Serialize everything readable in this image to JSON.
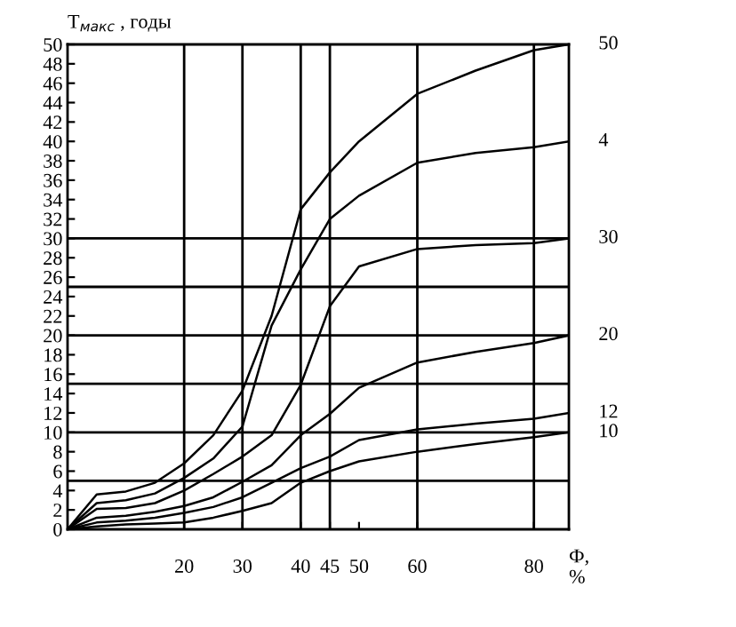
{
  "chart_data": {
    "type": "line",
    "ylabel": "T$_{макс}$ , годы",
    "xlabel": "Ф,\n%",
    "x": [
      0,
      5,
      10,
      15,
      20,
      25,
      30,
      35,
      40,
      45,
      50,
      60,
      70,
      80,
      86
    ],
    "series": [
      {
        "name": "50",
        "color": "#000000",
        "values": [
          0,
          3.6,
          3.9,
          4.8,
          6.8,
          9.7,
          14.3,
          22,
          33,
          36.8,
          40,
          44.9,
          47.3,
          49.4,
          50
        ]
      },
      {
        "name": "4",
        "color": "#000000",
        "values": [
          0,
          2.7,
          3.0,
          3.7,
          5.3,
          7.3,
          10.6,
          21,
          26.8,
          32,
          34.4,
          37.8,
          38.8,
          39.4,
          40
        ]
      },
      {
        "name": "30",
        "color": "#000000",
        "values": [
          0,
          2.1,
          2.2,
          2.7,
          4.0,
          5.7,
          7.5,
          9.7,
          14.9,
          23,
          27.1,
          28.9,
          29.3,
          29.5,
          30
        ]
      },
      {
        "name": "20",
        "color": "#000000",
        "values": [
          0,
          1.2,
          1.4,
          1.8,
          2.4,
          3.3,
          4.9,
          6.6,
          9.7,
          11.9,
          14.6,
          17.2,
          18.3,
          19.2,
          20
        ]
      },
      {
        "name": "12",
        "color": "#000000",
        "values": [
          0,
          0.7,
          0.9,
          1.2,
          1.7,
          2.3,
          3.3,
          4.8,
          6.3,
          7.5,
          9.2,
          10.3,
          10.9,
          11.4,
          12
        ]
      },
      {
        "name": "10",
        "color": "#000000",
        "values": [
          0,
          0.3,
          0.5,
          0.6,
          0.7,
          1.2,
          1.9,
          2.7,
          4.8,
          6.0,
          7.0,
          8.0,
          8.8,
          9.5,
          10
        ]
      }
    ],
    "xlim": [
      0,
      86
    ],
    "xticks": [
      20,
      30,
      40,
      45,
      50,
      60,
      80
    ],
    "ylim": [
      0,
      50
    ],
    "yticks": [
      0,
      2,
      4,
      6,
      8,
      10,
      12,
      14,
      16,
      18,
      20,
      22,
      24,
      26,
      28,
      30,
      32,
      34,
      36,
      38,
      40,
      42,
      44,
      46,
      48,
      50
    ],
    "ref_lines": [
      {
        "axis": "y",
        "value": 5
      },
      {
        "axis": "y",
        "value": 10
      },
      {
        "axis": "y",
        "value": 15
      },
      {
        "axis": "y",
        "value": 20
      },
      {
        "axis": "y",
        "value": 25
      },
      {
        "axis": "y",
        "value": 30
      },
      {
        "axis": "x",
        "value": 20
      },
      {
        "axis": "x",
        "value": 30
      },
      {
        "axis": "x",
        "value": 40
      },
      {
        "axis": "x",
        "value": 45
      },
      {
        "axis": "x",
        "value": 60
      },
      {
        "axis": "x",
        "value": 80
      }
    ],
    "grid": false,
    "legend": false,
    "marker": "none",
    "line_style": "solid"
  }
}
